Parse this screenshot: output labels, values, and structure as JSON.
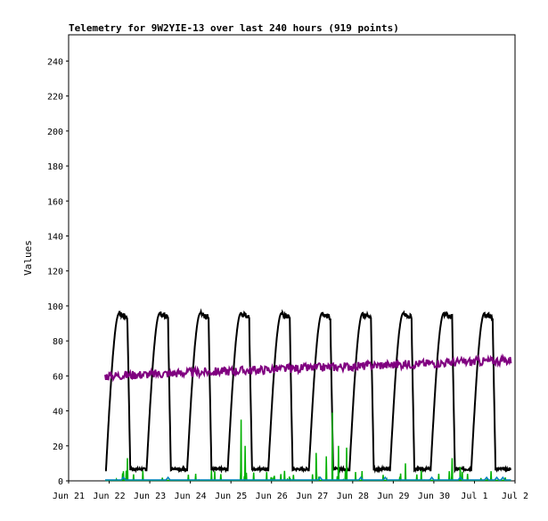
{
  "chart_data": {
    "type": "line",
    "title": "Telemetry for 9W2YIE-13 over last 240 hours (919 points)",
    "xlabel": "",
    "ylabel": "Values",
    "xlim": [
      "2023-06-21",
      "2023-07-02"
    ],
    "ylim": [
      0,
      255
    ],
    "grid": false,
    "legend": "none",
    "x_tick_labels": [
      "Jun 21",
      "Jun 22",
      "Jun 23",
      "Jun 24",
      "Jun 25",
      "Jun 26",
      "Jun 27",
      "Jun 28",
      "Jun 29",
      "Jun 30",
      "Jul 1",
      "Jul 2"
    ],
    "y_ticks": [
      0,
      20,
      40,
      60,
      80,
      100,
      120,
      140,
      160,
      180,
      200,
      220,
      240
    ],
    "series_colors": [
      "#000000",
      "#800080",
      "#00b000",
      "#0080c0"
    ],
    "series_shape": {
      "daily_cycle": {
        "days": 10,
        "low": 6,
        "high": 96
      },
      "steady": {
        "start": 60,
        "end": 69
      },
      "spikes": [
        {
          "day": 0.55,
          "value": 13
        },
        {
          "day": 3.35,
          "value": 35
        },
        {
          "day": 3.45,
          "value": 20
        },
        {
          "day": 5.2,
          "value": 16
        },
        {
          "day": 5.45,
          "value": 14
        },
        {
          "day": 5.6,
          "value": 39
        },
        {
          "day": 5.75,
          "value": 20
        },
        {
          "day": 5.95,
          "value": 19
        },
        {
          "day": 7.4,
          "value": 10
        },
        {
          "day": 8.55,
          "value": 13
        },
        {
          "day": 8.75,
          "value": 8
        }
      ],
      "baseline": 0.5
    }
  }
}
